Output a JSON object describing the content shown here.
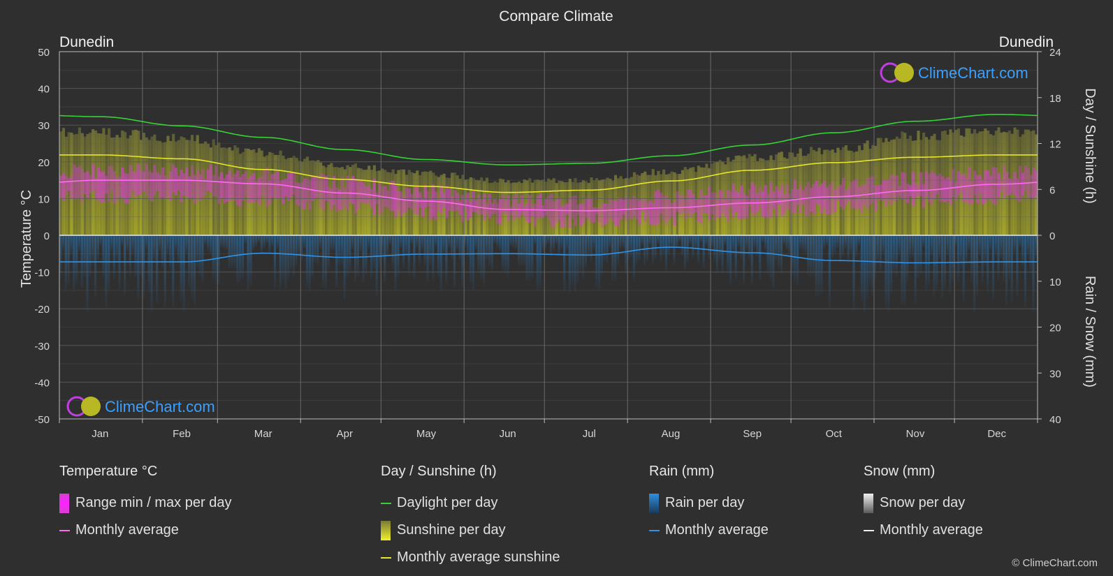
{
  "title": "Compare Climate",
  "location_left": "Dunedin",
  "location_right": "Dunedin",
  "brand": "ClimeChart.com",
  "copyright": "© ClimeChart.com",
  "colors": {
    "background": "#2f2f2f",
    "grid": "#5a5a5a",
    "temp_range": "#d63fd0",
    "temp_avg": "#ff6cf0",
    "daylight": "#35d435",
    "sunshine": "#b9b92a",
    "sunshine_avg": "#e6e62a",
    "rain": "#2f7fc0",
    "rain_avg": "#2f93e8",
    "snow": "#d9d9d9",
    "brand_text": "#3aa0ff"
  },
  "chart_data": {
    "type": "area",
    "months": [
      "Jan",
      "Feb",
      "Mar",
      "Apr",
      "May",
      "Jun",
      "Jul",
      "Aug",
      "Sep",
      "Oct",
      "Nov",
      "Dec"
    ],
    "axes": {
      "left": {
        "label": "Temperature °C",
        "range": [
          -50,
          50
        ],
        "ticks": [
          "50",
          "40",
          "30",
          "20",
          "10",
          "0",
          "-10",
          "-20",
          "-30",
          "-40",
          "-50"
        ]
      },
      "right_top": {
        "label": "Day / Sunshine (h)",
        "range": [
          0,
          24
        ],
        "ticks": [
          "24",
          "18",
          "12",
          "6",
          "0"
        ]
      },
      "right_bottom": {
        "label": "Rain / Snow (mm)",
        "range": [
          0,
          40
        ],
        "ticks": [
          "0",
          "10",
          "20",
          "30",
          "40"
        ]
      }
    },
    "grid": true,
    "series": {
      "temp_max_avg": [
        17.5,
        17.5,
        16.5,
        14.5,
        12.0,
        9.8,
        9.5,
        10.8,
        12.5,
        14.0,
        15.5,
        17.0
      ],
      "temp_min_avg": [
        10.5,
        10.5,
        9.5,
        8.0,
        6.0,
        4.0,
        3.8,
        4.5,
        6.0,
        7.5,
        9.0,
        10.0
      ],
      "temp_monthly_avg": [
        15.0,
        15.0,
        14.0,
        11.5,
        9.3,
        7.0,
        6.7,
        7.5,
        8.8,
        10.5,
        12.2,
        13.9
      ],
      "daylight_h": [
        15.5,
        14.3,
        12.8,
        11.2,
        9.9,
        9.2,
        9.4,
        10.4,
        11.8,
        13.4,
        14.9,
        15.8
      ],
      "sunshine_max_h": [
        14.2,
        13.3,
        11.4,
        9.5,
        8.5,
        7.5,
        7.6,
        8.8,
        10.7,
        11.8,
        13.7,
        14.2
      ],
      "sunshine_avg_h": [
        10.5,
        10.0,
        8.6,
        7.3,
        6.4,
        5.6,
        5.9,
        7.1,
        8.5,
        9.5,
        10.2,
        10.5
      ],
      "rain_monthly_avg_mm": [
        5.8,
        5.8,
        3.9,
        4.8,
        4.1,
        4.0,
        4.3,
        2.6,
        3.8,
        5.5,
        6.0,
        5.8
      ],
      "snow_monthly_avg_mm": [
        0,
        0,
        0,
        0,
        0,
        0,
        0,
        0,
        0,
        0,
        0,
        0
      ]
    }
  },
  "legend": {
    "temperature": {
      "title": "Temperature °C",
      "items": [
        {
          "type": "bar",
          "label": "Range min / max per day",
          "color": "#d63fd0"
        },
        {
          "type": "line",
          "label": "Monthly average",
          "color": "#ff6cf0"
        }
      ]
    },
    "sunshine": {
      "title": "Day / Sunshine (h)",
      "items": [
        {
          "type": "line",
          "label": "Daylight per day",
          "color": "#35d435"
        },
        {
          "type": "bar",
          "label": "Sunshine per day",
          "color": "#d7d72f"
        },
        {
          "type": "line",
          "label": "Monthly average sunshine",
          "color": "#e6e62a"
        }
      ]
    },
    "rain": {
      "title": "Rain (mm)",
      "items": [
        {
          "type": "bar",
          "label": "Rain per day",
          "color": "#2f8fe0"
        },
        {
          "type": "line",
          "label": "Monthly average",
          "color": "#2f93e8"
        }
      ]
    },
    "snow": {
      "title": "Snow (mm)",
      "items": [
        {
          "type": "bar",
          "label": "Snow per day",
          "color": "#e0e0e0"
        },
        {
          "type": "line",
          "label": "Monthly average",
          "color": "#eeeeee"
        }
      ]
    }
  }
}
